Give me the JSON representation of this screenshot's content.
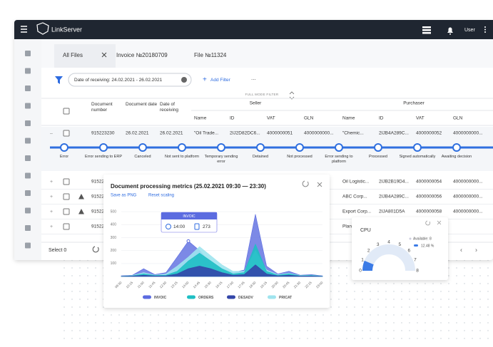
{
  "app": {
    "name": "LinkServer",
    "user": "User"
  },
  "tabs": [
    "All Files",
    "Invoice №20180709",
    "File №11324"
  ],
  "filter": {
    "chip": "Date of receiving: 24.02.2021 - 26.02.2021",
    "add": "Add Filter",
    "more": "...",
    "mode": "FULL MODE FILTER"
  },
  "table": {
    "columns": [
      "Document number",
      "Document date",
      "Date of receiving"
    ],
    "groups": [
      {
        "title": "Seller",
        "columns": [
          "Name",
          "ID",
          "VAT",
          "GLN"
        ]
      },
      {
        "title": "Purchaser",
        "columns": [
          "Name",
          "ID",
          "VAT",
          "GLN"
        ]
      }
    ],
    "rows": [
      {
        "expanded": true,
        "warning": false,
        "cells": [
          "915223230",
          "26.02.2021",
          "26.02.2021",
          "\"Oil Trade...",
          "2IJ2D82DC6...",
          "4000000051",
          "4000000000...",
          "\"Chemic...",
          "2IJB4A289C...",
          "4000000052",
          "4000000000..."
        ]
      },
      {
        "expanded": false,
        "warning": false,
        "cells": [
          "91522",
          null,
          null,
          null,
          null,
          null,
          "0...",
          "Oil Logistic...",
          "2IJB2B19D4...",
          "4000000054",
          "4000000000..."
        ]
      },
      {
        "expanded": false,
        "warning": true,
        "cells": [
          "91522",
          null,
          null,
          null,
          null,
          null,
          "0...",
          "ABC Corp...",
          "2IJB4A289C...",
          "4000000056",
          "4000000000..."
        ]
      },
      {
        "expanded": false,
        "warning": true,
        "cells": [
          "91522",
          null,
          null,
          null,
          null,
          null,
          "0...",
          "Export Corp...",
          "2IJA801D5A",
          "4000000058",
          "4000000000..."
        ]
      },
      {
        "expanded": false,
        "warning": false,
        "cells": [
          "91522",
          null,
          null,
          null,
          null,
          null,
          "0...",
          "Plan",
          null,
          null,
          null
        ]
      }
    ],
    "statuses": [
      "Error",
      "Error sending to ERP",
      "Canceled",
      "Not sent to platform",
      "Temporary sending error",
      "Detained",
      "Not processed",
      "Error sending to platform",
      "Processed",
      "Signed automatically",
      "Awaiting decision"
    ],
    "footer": "Select 0"
  },
  "chart_data": {
    "type": "area",
    "title": "Document processing metrics (25.02.2021 09:30 — 23:30)",
    "actions": [
      "Save as PNG",
      "Reset scaling"
    ],
    "categories": [
      "09:30",
      "10:15",
      "11:00",
      "11:45",
      "12:30",
      "13:15",
      "14:00",
      "14:45",
      "15:30",
      "16:15",
      "17:00",
      "17:45",
      "18:30",
      "19:15",
      "20:00",
      "20:45",
      "21:30",
      "22:15",
      "23:00"
    ],
    "series": [
      {
        "name": "INVOIC",
        "color": "#5b6be0",
        "values": [
          5,
          10,
          60,
          15,
          30,
          150,
          273,
          200,
          100,
          60,
          30,
          50,
          480,
          80,
          20,
          40,
          10,
          15,
          5
        ]
      },
      {
        "name": "ORDERS",
        "color": "#1fbfc4",
        "values": [
          2,
          5,
          20,
          8,
          10,
          40,
          120,
          180,
          120,
          60,
          20,
          30,
          250,
          40,
          10,
          20,
          5,
          8,
          2
        ]
      },
      {
        "name": "DESADV",
        "color": "#3346a8",
        "values": [
          1,
          3,
          10,
          4,
          5,
          20,
          60,
          80,
          60,
          30,
          10,
          15,
          90,
          20,
          5,
          10,
          3,
          4,
          1
        ]
      },
      {
        "name": "PRICAT",
        "color": "#9fe4ee",
        "values": [
          3,
          8,
          30,
          10,
          20,
          80,
          150,
          230,
          160,
          90,
          40,
          40,
          200,
          50,
          15,
          25,
          8,
          10,
          3
        ]
      }
    ],
    "ylim": [
      0,
      550
    ],
    "yticks": [
      100,
      200,
      300,
      400,
      500
    ],
    "tooltip": {
      "series": 0,
      "index": 6
    }
  },
  "cpu": {
    "title": "CPU",
    "ticks": [
      0,
      1,
      2,
      3,
      4,
      5,
      6,
      7,
      8
    ],
    "available": "Available: 8",
    "value": 12.48,
    "value_label": "12.48 %",
    "color": "#3b7be6"
  }
}
